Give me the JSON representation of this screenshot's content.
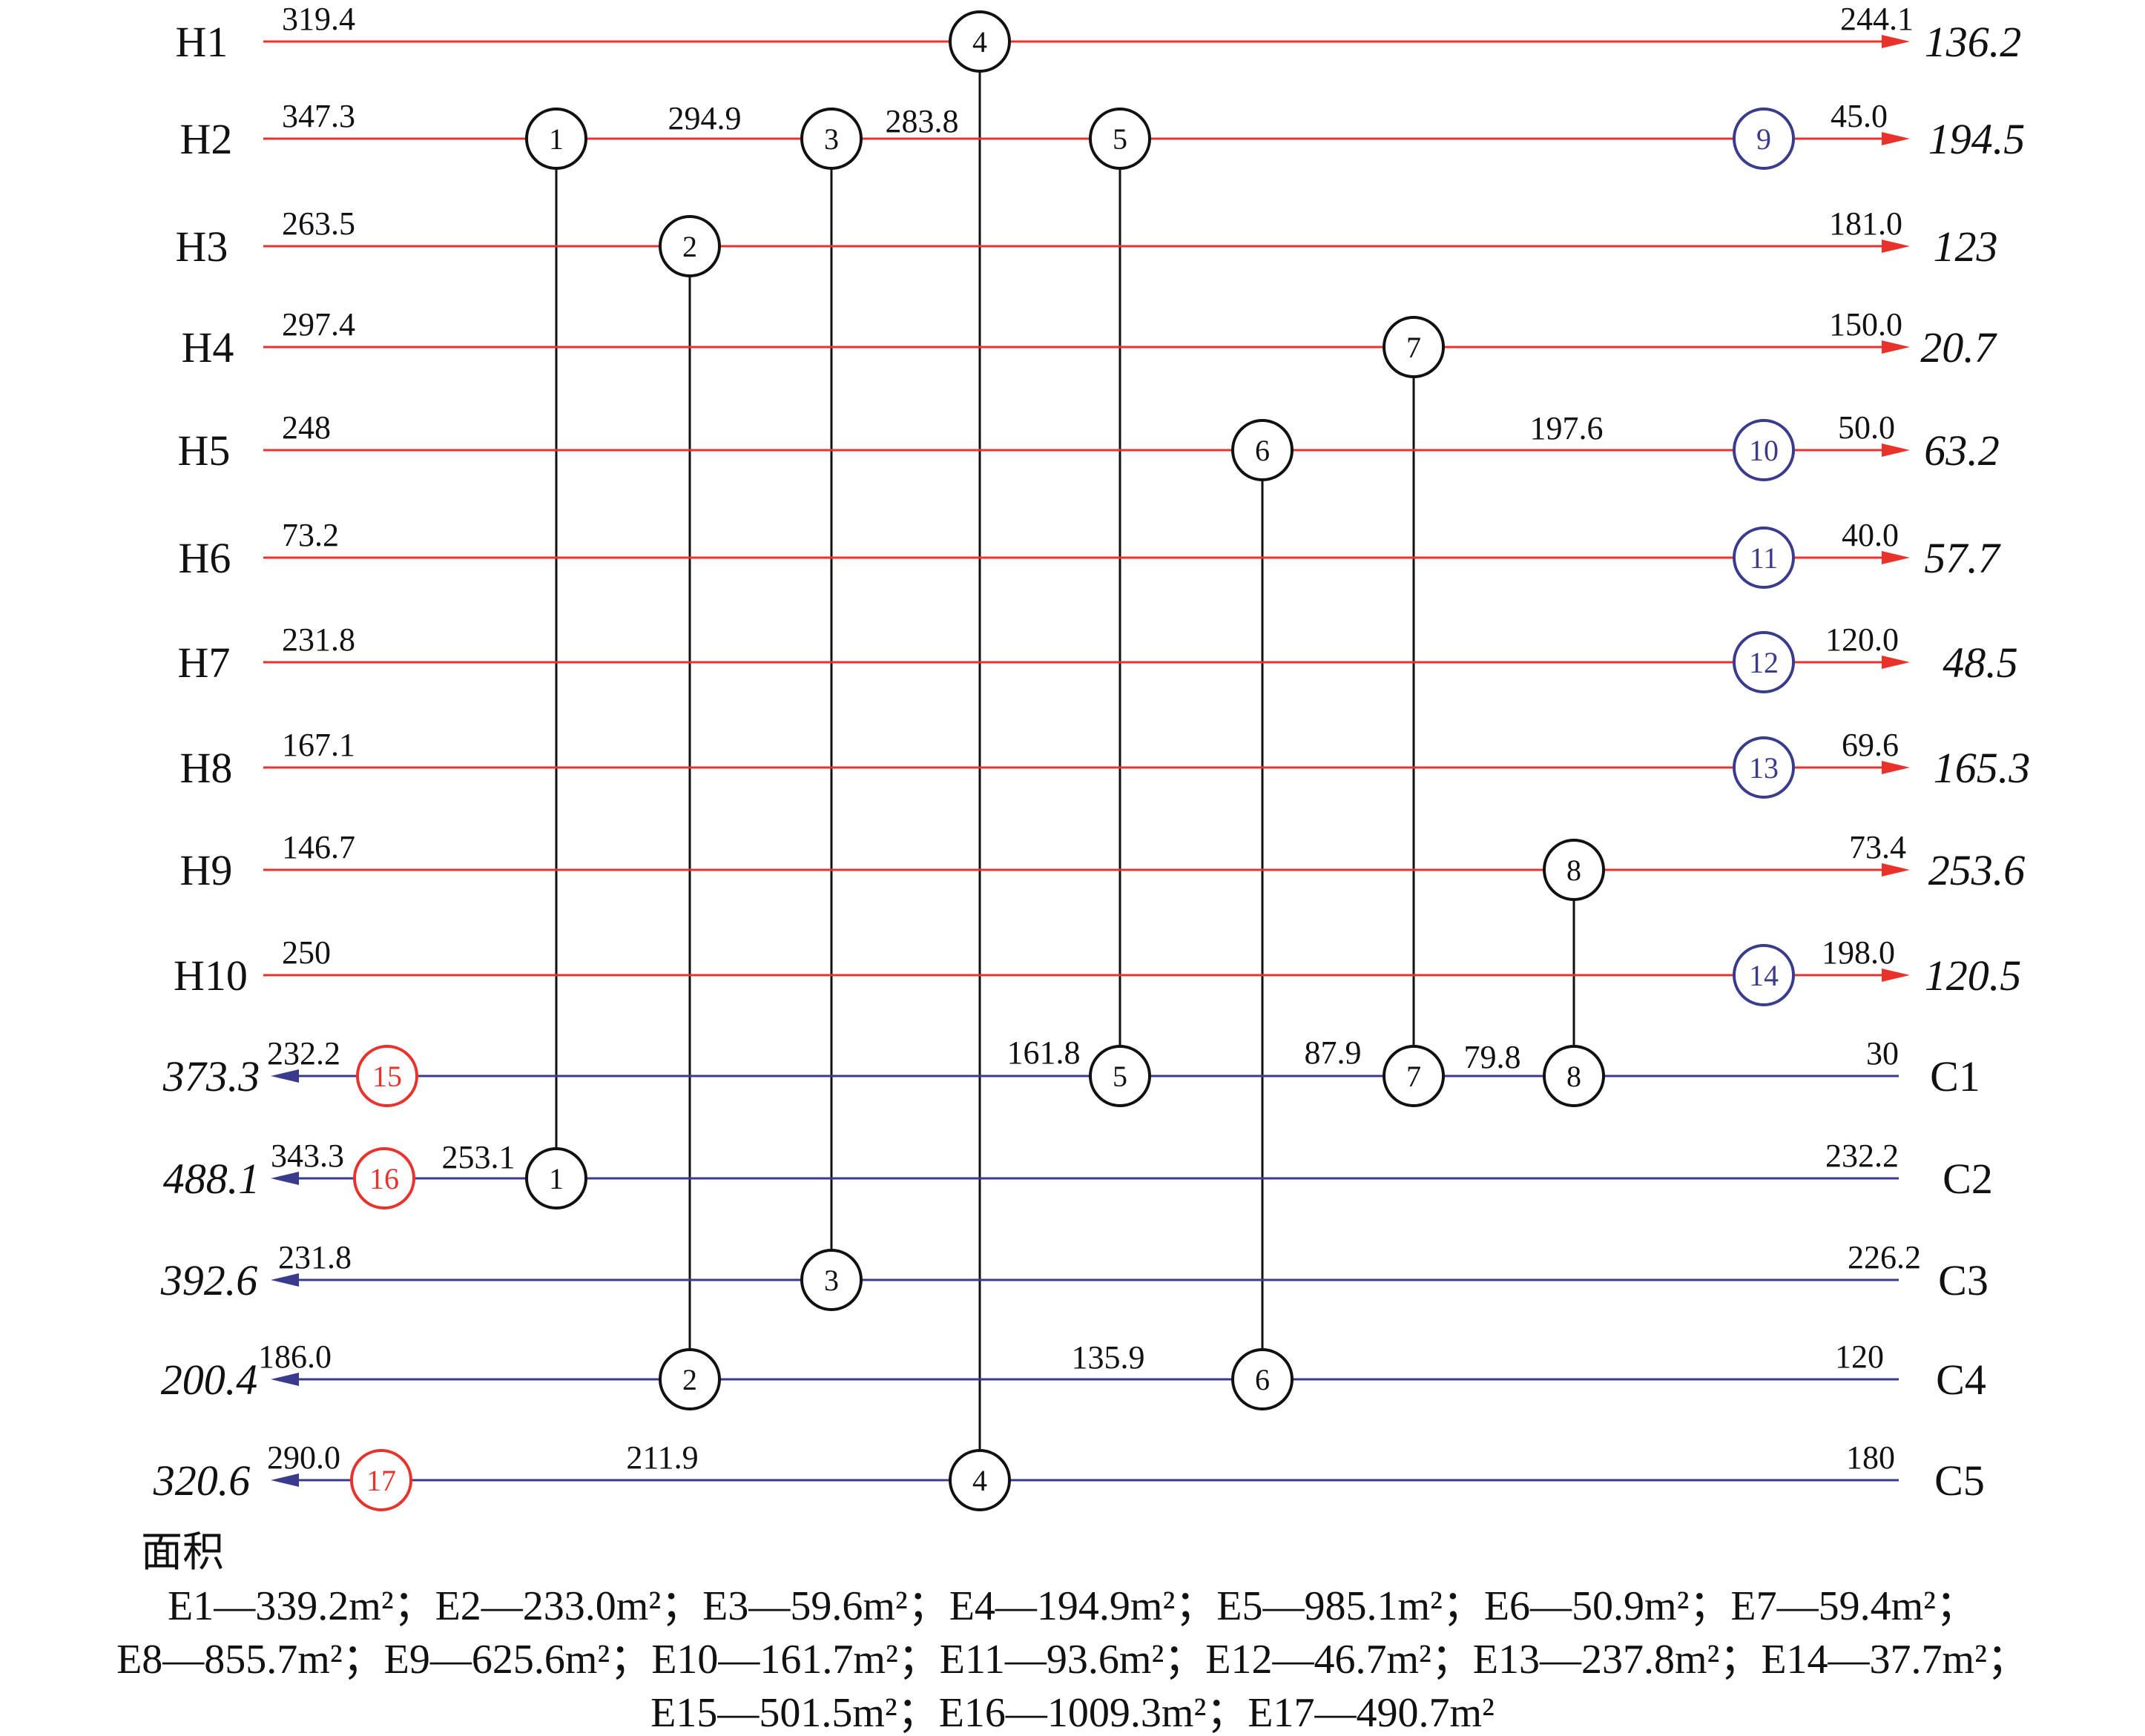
{
  "colors": {
    "hot_line": "#e8322b",
    "cold_line": "#3a3b8c",
    "exchanger": "#111111",
    "cooler": "#3a3b8c",
    "heater": "#e8322b"
  },
  "hot_streams": [
    {
      "name": "H1",
      "inlet": "319.4",
      "outlet": "244.1",
      "target": "136.2"
    },
    {
      "name": "H2",
      "inlet": "347.3",
      "outlet": "45.0",
      "target": "194.5"
    },
    {
      "name": "H3",
      "inlet": "263.5",
      "outlet": "181.0",
      "target": "123"
    },
    {
      "name": "H4",
      "inlet": "297.4",
      "outlet": "150.0",
      "target": "20.7"
    },
    {
      "name": "H5",
      "inlet": "248",
      "outlet": "50.0",
      "target": "63.2"
    },
    {
      "name": "H6",
      "inlet": "73.2",
      "outlet": "40.0",
      "target": "57.7"
    },
    {
      "name": "H7",
      "inlet": "231.8",
      "outlet": "120.0",
      "target": "48.5"
    },
    {
      "name": "H8",
      "inlet": "167.1",
      "outlet": "69.6",
      "target": "165.3"
    },
    {
      "name": "H9",
      "inlet": "146.7",
      "outlet": "73.4",
      "target": "253.6"
    },
    {
      "name": "H10",
      "inlet": "250",
      "outlet": "198.0",
      "target": "120.5"
    }
  ],
  "cold_streams": [
    {
      "name": "C1",
      "inlet": "30",
      "outlet": "232.2",
      "target": "373.3"
    },
    {
      "name": "C2",
      "inlet": "232.2",
      "outlet": "343.3",
      "target": "488.1"
    },
    {
      "name": "C3",
      "inlet": "226.2",
      "outlet": "231.8",
      "target": "392.6"
    },
    {
      "name": "C4",
      "inlet": "120",
      "outlet": "186.0",
      "target": "200.4"
    },
    {
      "name": "C5",
      "inlet": "180",
      "outlet": "290.0",
      "target": "320.6"
    }
  ],
  "exchangers": [
    {
      "id": "1",
      "hot": "H2",
      "cold": "C2"
    },
    {
      "id": "2",
      "hot": "H3",
      "cold": "C4"
    },
    {
      "id": "3",
      "hot": "H2",
      "cold": "C3"
    },
    {
      "id": "4",
      "hot": "H1",
      "cold": "C5"
    },
    {
      "id": "5",
      "hot": "H2",
      "cold": "C1"
    },
    {
      "id": "6",
      "hot": "H5",
      "cold": "C4"
    },
    {
      "id": "7",
      "hot": "H4",
      "cold": "C1"
    },
    {
      "id": "8",
      "hot": "H9",
      "cold": "C1"
    }
  ],
  "coolers": [
    {
      "id": "9",
      "stream": "H2"
    },
    {
      "id": "10",
      "stream": "H5"
    },
    {
      "id": "11",
      "stream": "H6"
    },
    {
      "id": "12",
      "stream": "H7"
    },
    {
      "id": "13",
      "stream": "H8"
    },
    {
      "id": "14",
      "stream": "H10"
    }
  ],
  "heaters": [
    {
      "id": "15",
      "stream": "C1"
    },
    {
      "id": "16",
      "stream": "C2"
    },
    {
      "id": "17",
      "stream": "C5"
    }
  ],
  "intermediate_temps": [
    {
      "stream": "H2",
      "value": "294.9"
    },
    {
      "stream": "H2",
      "value": "283.8"
    },
    {
      "stream": "H5",
      "value": "197.6"
    },
    {
      "stream": "C1",
      "value": "161.8"
    },
    {
      "stream": "C1",
      "value": "87.9"
    },
    {
      "stream": "C1",
      "value": "79.8"
    },
    {
      "stream": "C2",
      "value": "253.1"
    },
    {
      "stream": "C4",
      "value": "135.9"
    },
    {
      "stream": "C5",
      "value": "211.9"
    }
  ],
  "area": {
    "title": "面积",
    "line1": "E1—339.2m²；E2—233.0m²；E3—59.6m²；E4—194.9m²；E5—985.1m²；E6—50.9m²；E7—59.4m²；",
    "line2": "E8—855.7m²；E9—625.6m²；E10—161.7m²；E11—93.6m²；E12—46.7m²；E13—237.8m²；E14—37.7m²；",
    "line3": "E15—501.5m²；E16—1009.3m²；E17—490.7m²"
  }
}
